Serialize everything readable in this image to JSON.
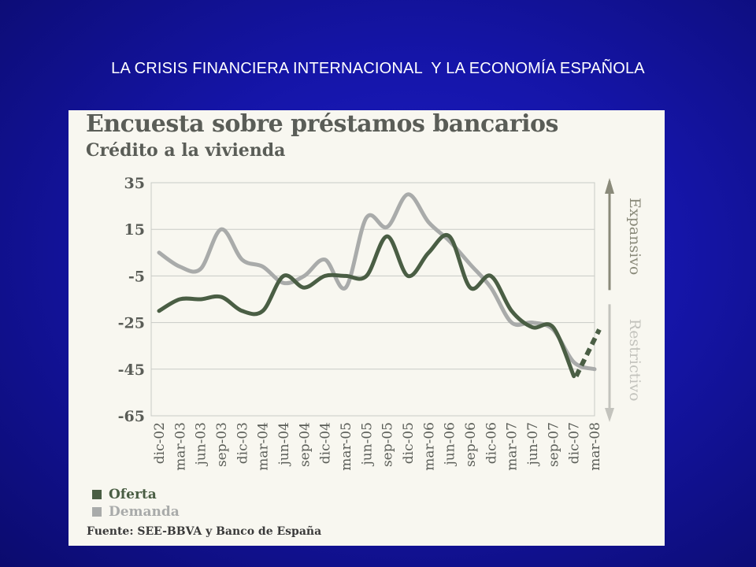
{
  "slide": {
    "title": "LA CRISIS FINANCIERA INTERNACIONAL  Y LA ECONOMÍA ESPAÑOLA"
  },
  "colors": {
    "background": "#1515a8",
    "oferta": "#4a5e44",
    "demanda": "#a9abaa",
    "arrow": "#8a8a7a"
  },
  "chart_data": {
    "type": "line",
    "title": "Encuesta sobre préstamos bancarios",
    "subtitle": "Crédito a la vivienda",
    "categories": [
      "dic-02",
      "mar-03",
      "jun-03",
      "sep-03",
      "dic-03",
      "mar-04",
      "jun-04",
      "sep-04",
      "dic-04",
      "mar-05",
      "jun-05",
      "sep-05",
      "dic-05",
      "mar-06",
      "jun-06",
      "sep-06",
      "dic-06",
      "mar-07",
      "jun-07",
      "sep-07",
      "dic-07",
      "mar-08"
    ],
    "yticks": [
      35,
      15,
      -5,
      -25,
      -45,
      -65
    ],
    "ylim": [
      -65,
      35
    ],
    "grid": true,
    "series": [
      {
        "name": "Oferta",
        "color": "#4a5e44",
        "values": [
          -20,
          -15,
          -15,
          -14,
          -20,
          -20,
          -5,
          -10,
          -5,
          -5,
          -5,
          12,
          -5,
          5,
          12,
          -10,
          -5,
          -20,
          -27,
          -27,
          -48,
          -40
        ],
        "dashed_from_index": 20,
        "dashed_values": [
          -48,
          -28
        ]
      },
      {
        "name": "Demanda",
        "color": "#a9abaa",
        "values": [
          5,
          -1,
          -2,
          15,
          2,
          -1,
          -8,
          -5,
          2,
          -10,
          20,
          16,
          30,
          18,
          10,
          0,
          -10,
          -25,
          -25,
          -28,
          -42,
          -45
        ]
      }
    ],
    "side_labels": {
      "up": "Expansivo",
      "down": "Restrictivo"
    },
    "legend": [
      {
        "label": "Oferta",
        "color": "#4a5e44"
      },
      {
        "label": "Demanda",
        "color": "#a9abaa"
      }
    ],
    "legend_position": "bottom-left",
    "source": "Fuente: SEE-BBVA y Banco de España"
  }
}
